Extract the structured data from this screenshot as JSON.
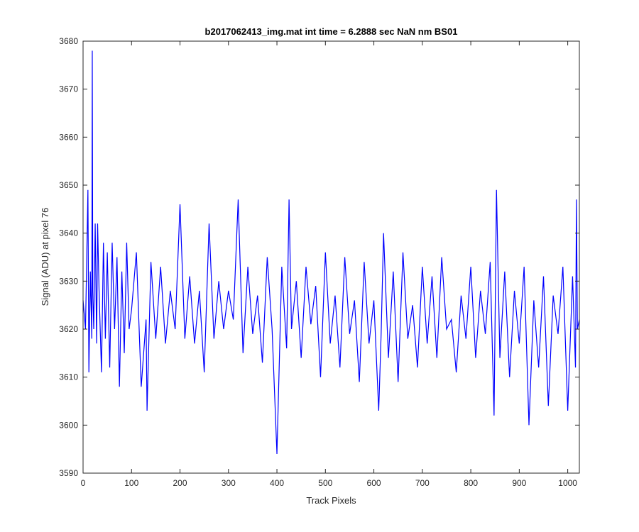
{
  "chart_data": {
    "type": "line",
    "title": "b2017062413_img.mat int time = 6.2888 sec  NaN nm BS01",
    "xlabel": "Track Pixels",
    "ylabel": "Signal (ADU) at pixel 76",
    "xlim": [
      0,
      1024
    ],
    "ylim": [
      3590,
      3680
    ],
    "xticks": [
      0,
      100,
      200,
      300,
      400,
      500,
      600,
      700,
      800,
      900,
      1000
    ],
    "yticks": [
      3590,
      3600,
      3610,
      3620,
      3630,
      3640,
      3650,
      3660,
      3670,
      3680
    ],
    "grid": false,
    "line_color": "#0000ff",
    "series": [
      {
        "x": [
          0,
          5,
          10,
          12,
          15,
          18,
          19,
          20,
          22,
          25,
          28,
          30,
          33,
          38,
          42,
          46,
          50,
          55,
          60,
          65,
          70,
          75,
          80,
          85,
          90,
          95,
          100,
          110,
          120,
          130,
          132,
          140,
          150,
          160,
          170,
          180,
          190,
          200,
          210,
          220,
          230,
          240,
          250,
          260,
          270,
          280,
          290,
          300,
          310,
          320,
          330,
          340,
          350,
          360,
          370,
          380,
          390,
          400,
          410,
          420,
          425,
          430,
          440,
          450,
          460,
          470,
          480,
          490,
          500,
          510,
          520,
          530,
          540,
          550,
          560,
          570,
          580,
          590,
          600,
          610,
          615,
          620,
          630,
          640,
          650,
          660,
          670,
          680,
          690,
          700,
          710,
          720,
          730,
          740,
          750,
          760,
          770,
          780,
          790,
          800,
          810,
          820,
          830,
          840,
          848,
          853,
          860,
          870,
          880,
          890,
          900,
          910,
          920,
          930,
          940,
          950,
          960,
          970,
          980,
          990,
          1000,
          1010,
          1016,
          1018,
          1020,
          1024
        ],
        "y": [
          3626,
          3620,
          3649,
          3611,
          3632,
          3618,
          3678,
          3628,
          3620,
          3642,
          3617,
          3642,
          3628,
          3611,
          3638,
          3618,
          3636,
          3612,
          3638,
          3620,
          3635,
          3608,
          3632,
          3615,
          3638,
          3620,
          3624,
          3636,
          3608,
          3622,
          3603,
          3634,
          3618,
          3633,
          3617,
          3628,
          3620,
          3646,
          3618,
          3631,
          3617,
          3628,
          3611,
          3642,
          3618,
          3630,
          3620,
          3628,
          3622,
          3647,
          3615,
          3633,
          3619,
          3627,
          3613,
          3635,
          3620,
          3594,
          3633,
          3616,
          3647,
          3620,
          3630,
          3614,
          3633,
          3621,
          3629,
          3610,
          3636,
          3617,
          3627,
          3612,
          3635,
          3619,
          3626,
          3609,
          3634,
          3617,
          3626,
          3603,
          3619,
          3640,
          3614,
          3632,
          3609,
          3636,
          3618,
          3625,
          3612,
          3633,
          3617,
          3631,
          3614,
          3635,
          3620,
          3622,
          3611,
          3627,
          3618,
          3633,
          3614,
          3628,
          3619,
          3634,
          3602,
          3649,
          3614,
          3632,
          3610,
          3628,
          3617,
          3633,
          3600,
          3626,
          3612,
          3631,
          3604,
          3627,
          3619,
          3633,
          3603,
          3631,
          3612,
          3647,
          3620,
          3622
        ]
      }
    ]
  }
}
